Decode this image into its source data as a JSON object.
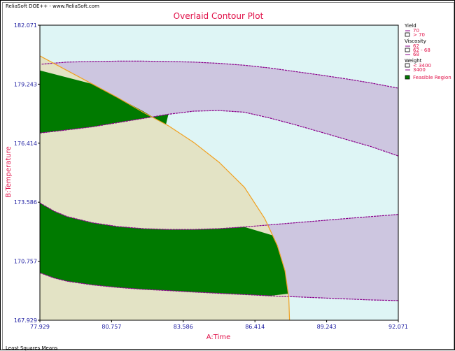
{
  "header_text": "ReliaSoft DOE++ - www.ReliaSoft.com",
  "footer_text": "Least Squares Means",
  "colors": {
    "background": "#ffffff",
    "plot_bg": "#def5f5",
    "viscosity_band": "#cdc6e0",
    "viscosity_line": "#8b008b",
    "weight_fill": "#e3e3c5",
    "weight_line": "#f0a020",
    "feasible": "#007a00",
    "title": "#e01048",
    "axis_text": "#1a1aa0",
    "legend_text": "#e01048"
  },
  "chart_data": {
    "type": "contour",
    "title": "Overlaid Contour Plot",
    "xlabel": "A:Time",
    "ylabel": "B:Temperature",
    "xlim": [
      77.929,
      92.071
    ],
    "ylim": [
      167.929,
      182.071
    ],
    "xticks": [
      "77.929",
      "80.757",
      "83.586",
      "86.414",
      "89.243",
      "92.071"
    ],
    "yticks": [
      "182.071",
      "179.243",
      "176.414",
      "173.586",
      "170.757",
      "167.929"
    ],
    "grid": false,
    "legend_position": "right",
    "legend": [
      {
        "group": "Yield",
        "items": [
          {
            "kind": "line",
            "label": "70"
          },
          {
            "kind": "box",
            "label": "> 70"
          }
        ]
      },
      {
        "group": "Viscosity",
        "items": [
          {
            "kind": "line",
            "label": "62"
          },
          {
            "kind": "box",
            "label": "62 - 68"
          },
          {
            "kind": "line",
            "label": "68"
          }
        ]
      },
      {
        "group": "Weight",
        "items": [
          {
            "kind": "box",
            "label": "< 3400"
          },
          {
            "kind": "line",
            "label": "3400"
          }
        ]
      },
      {
        "group": "",
        "items": [
          {
            "kind": "filled",
            "label": "Feasible Region"
          }
        ]
      }
    ],
    "viscosity_68_contour": [
      [
        77.929,
        176.9
      ],
      [
        79.0,
        177.05
      ],
      [
        80.0,
        177.2
      ],
      [
        81.0,
        177.4
      ],
      [
        82.0,
        177.6
      ],
      [
        83.0,
        177.8
      ],
      [
        84.0,
        177.95
      ],
      [
        85.0,
        177.98
      ],
      [
        86.0,
        177.9
      ],
      [
        87.0,
        177.62
      ],
      [
        88.0,
        177.3
      ],
      [
        89.0,
        176.95
      ],
      [
        90.0,
        176.6
      ],
      [
        91.0,
        176.25
      ],
      [
        92.071,
        175.8
      ]
    ],
    "viscosity_62_contour_upper": [
      [
        78.0,
        180.2
      ],
      [
        79.0,
        180.3
      ],
      [
        80.0,
        180.33
      ],
      [
        81.0,
        180.35
      ],
      [
        82.0,
        180.35
      ],
      [
        83.0,
        180.33
      ],
      [
        84.0,
        180.3
      ],
      [
        85.0,
        180.24
      ],
      [
        86.0,
        180.15
      ],
      [
        87.0,
        180.02
      ],
      [
        88.0,
        179.85
      ],
      [
        89.0,
        179.68
      ],
      [
        90.0,
        179.5
      ],
      [
        91.0,
        179.3
      ],
      [
        92.071,
        179.05
      ]
    ],
    "viscosity_62_contour_lower": [
      [
        77.929,
        173.55
      ],
      [
        78.5,
        173.15
      ],
      [
        79.0,
        172.9
      ],
      [
        80.0,
        172.6
      ],
      [
        81.0,
        172.42
      ],
      [
        82.0,
        172.32
      ],
      [
        83.0,
        172.28
      ],
      [
        84.0,
        172.28
      ],
      [
        85.0,
        172.32
      ],
      [
        86.0,
        172.4
      ],
      [
        87.0,
        172.5
      ],
      [
        88.0,
        172.6
      ],
      [
        89.0,
        172.7
      ],
      [
        90.0,
        172.8
      ],
      [
        91.0,
        172.9
      ],
      [
        92.071,
        173.0
      ]
    ],
    "viscosity_68_contour_lower": [
      [
        77.929,
        170.2
      ],
      [
        78.5,
        169.95
      ],
      [
        79.0,
        169.8
      ],
      [
        80.0,
        169.62
      ],
      [
        81.0,
        169.5
      ],
      [
        82.0,
        169.41
      ],
      [
        83.0,
        169.35
      ],
      [
        84.0,
        169.28
      ],
      [
        85.0,
        169.22
      ],
      [
        86.0,
        169.16
      ],
      [
        87.0,
        169.1
      ],
      [
        88.0,
        169.05
      ],
      [
        89.0,
        169.0
      ],
      [
        90.0,
        168.95
      ],
      [
        91.0,
        168.9
      ],
      [
        92.071,
        168.87
      ]
    ],
    "weight_3400_contour": [
      [
        77.929,
        180.6
      ],
      [
        79.0,
        179.9
      ],
      [
        80.0,
        179.25
      ],
      [
        81.0,
        178.6
      ],
      [
        82.0,
        177.9
      ],
      [
        83.0,
        177.25
      ],
      [
        84.0,
        176.45
      ],
      [
        85.0,
        175.5
      ],
      [
        86.0,
        174.3
      ],
      [
        86.8,
        172.8
      ],
      [
        87.3,
        171.5
      ],
      [
        87.6,
        170.3
      ],
      [
        87.75,
        169.0
      ],
      [
        87.78,
        167.929
      ]
    ],
    "feasible_regions": [
      [
        [
          77.929,
          179.9
        ],
        [
          80.0,
          179.25
        ],
        [
          81.0,
          178.6
        ],
        [
          82.0,
          177.95
        ],
        [
          82.9,
          177.3
        ],
        [
          83.0,
          177.8
        ],
        [
          82.0,
          177.6
        ],
        [
          81.0,
          177.4
        ],
        [
          80.0,
          177.2
        ],
        [
          79.0,
          177.05
        ],
        [
          77.929,
          176.9
        ]
      ],
      [
        [
          77.929,
          173.55
        ],
        [
          78.5,
          173.15
        ],
        [
          79.0,
          172.9
        ],
        [
          80.0,
          172.6
        ],
        [
          81.0,
          172.42
        ],
        [
          82.0,
          172.32
        ],
        [
          83.0,
          172.28
        ],
        [
          84.0,
          172.28
        ],
        [
          85.0,
          172.32
        ],
        [
          86.0,
          172.4
        ],
        [
          87.1,
          172.0
        ],
        [
          87.3,
          171.5
        ],
        [
          87.6,
          170.3
        ],
        [
          87.72,
          169.2
        ],
        [
          87.0,
          169.1
        ],
        [
          86.0,
          169.16
        ],
        [
          85.0,
          169.22
        ],
        [
          84.0,
          169.28
        ],
        [
          83.0,
          169.35
        ],
        [
          82.0,
          169.41
        ],
        [
          81.0,
          169.5
        ],
        [
          80.0,
          169.62
        ],
        [
          79.0,
          169.8
        ],
        [
          78.5,
          169.95
        ],
        [
          77.929,
          170.2
        ]
      ]
    ]
  }
}
